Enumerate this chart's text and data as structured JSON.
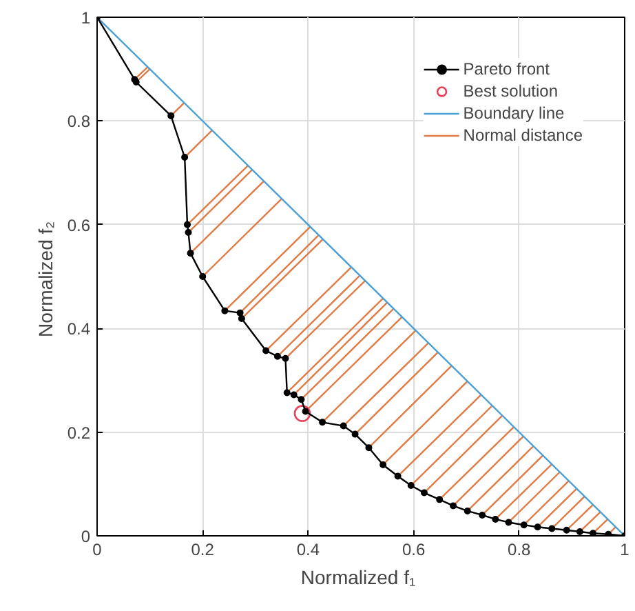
{
  "chart_data": {
    "type": "line",
    "xlabel": "Normalized  f₁",
    "ylabel": "Normalized  f₂",
    "xlim": [
      0,
      1
    ],
    "ylim": [
      0,
      1
    ],
    "xticks": [
      0,
      {
        "value": 0.2,
        "label": "0.2"
      },
      {
        "value": 0.4,
        "label": "0.4"
      },
      {
        "value": 0.6,
        "label": "0.6"
      },
      {
        "value": 0.8,
        "label": "0.8"
      },
      1
    ],
    "yticks": [
      0,
      {
        "value": 0.2,
        "label": "0.2"
      },
      {
        "value": 0.4,
        "label": "0.4"
      },
      {
        "value": 0.6,
        "label": "0.6"
      },
      {
        "value": 0.8,
        "label": "0.8"
      },
      1
    ],
    "grid": true,
    "legend": "top right",
    "series": [
      {
        "name": "Pareto front",
        "color": "#000000",
        "line_style": "solid",
        "marker": "circle",
        "x": [
          0,
          0.071,
          0.074,
          0.14,
          0.166,
          0.171,
          0.173,
          0.177,
          0.2,
          0.242,
          0.271,
          0.274,
          0.32,
          0.342,
          0.357,
          0.36,
          0.373,
          0.387,
          0.395,
          0.427,
          0.467,
          0.489,
          0.515,
          0.542,
          0.57,
          0.595,
          0.62,
          0.649,
          0.675,
          0.702,
          0.73,
          0.755,
          0.78,
          0.809,
          0.835,
          0.862,
          0.89,
          0.915,
          0.94,
          0.969,
          1
        ],
        "values": [
          1,
          0.88,
          0.875,
          0.81,
          0.73,
          0.6,
          0.585,
          0.545,
          0.5,
          0.434,
          0.43,
          0.419,
          0.357,
          0.346,
          0.342,
          0.276,
          0.272,
          0.263,
          0.24,
          0.219,
          0.212,
          0.196,
          0.17,
          0.137,
          0.115,
          0.097,
          0.083,
          0.07,
          0.058,
          0.048,
          0.04,
          0.032,
          0.026,
          0.021,
          0.017,
          0.014,
          0.011,
          0.008,
          0.005,
          0.003,
          0
        ]
      },
      {
        "name": "Best solution",
        "type": "scatter",
        "color": "#e8415a",
        "marker": "circle",
        "x": [
          0.389
        ],
        "values": [
          0.236
        ]
      },
      {
        "name": "Boundary line",
        "color": "#4a9fd4",
        "line_style": "solid",
        "marker": "none",
        "x": [
          0,
          1
        ],
        "values": [
          1,
          0
        ]
      },
      {
        "name": "Normal distance",
        "color": "#e07b45",
        "line_style": "solid",
        "marker": "none",
        "x": [
          0.071,
          0.096,
          null,
          0.074,
          0.1,
          null,
          0.14,
          0.165,
          null,
          0.166,
          0.218,
          null,
          0.171,
          0.286,
          null,
          0.173,
          0.294,
          null,
          0.177,
          0.316,
          null,
          0.2,
          0.35,
          null,
          0.242,
          0.404,
          null,
          0.271,
          0.42,
          null,
          0.274,
          0.428,
          null,
          0.32,
          0.482,
          null,
          0.342,
          0.498,
          null,
          0.357,
          0.508,
          null,
          0.36,
          0.542,
          null,
          0.373,
          0.55,
          null,
          0.387,
          0.562,
          null,
          0.395,
          0.578,
          null,
          0.427,
          0.604,
          null,
          0.467,
          0.628,
          null,
          0.489,
          0.646,
          null,
          0.515,
          0.672,
          null,
          0.542,
          0.702,
          null,
          0.57,
          0.728,
          null,
          0.595,
          0.749,
          null,
          0.62,
          0.768,
          null,
          0.649,
          0.79,
          null,
          0.675,
          0.808,
          null,
          0.702,
          0.827,
          null,
          0.73,
          0.845,
          null,
          0.755,
          0.862,
          null,
          0.78,
          0.877,
          null,
          0.809,
          0.894,
          null,
          0.835,
          0.909,
          null,
          0.862,
          0.924,
          null,
          0.89,
          0.94,
          null,
          0.915,
          0.954,
          null,
          0.94,
          0.968,
          null,
          0.969,
          0.983
        ],
        "values": [
          0.88,
          0.904,
          null,
          0.875,
          0.9,
          null,
          0.81,
          0.835,
          null,
          0.73,
          0.782,
          null,
          0.6,
          0.714,
          null,
          0.585,
          0.706,
          null,
          0.545,
          0.684,
          null,
          0.5,
          0.65,
          null,
          0.434,
          0.596,
          null,
          0.43,
          0.58,
          null,
          0.419,
          0.572,
          null,
          0.357,
          0.518,
          null,
          0.346,
          0.502,
          null,
          0.342,
          0.492,
          null,
          0.276,
          0.458,
          null,
          0.272,
          0.45,
          null,
          0.263,
          0.438,
          null,
          0.24,
          0.422,
          null,
          0.219,
          0.396,
          null,
          0.212,
          0.372,
          null,
          0.196,
          0.354,
          null,
          0.17,
          0.328,
          null,
          0.137,
          0.298,
          null,
          0.115,
          0.272,
          null,
          0.097,
          0.251,
          null,
          0.083,
          0.232,
          null,
          0.07,
          0.21,
          null,
          0.058,
          0.192,
          null,
          0.048,
          0.173,
          null,
          0.04,
          0.155,
          null,
          0.032,
          0.138,
          null,
          0.026,
          0.123,
          null,
          0.021,
          0.106,
          null,
          0.017,
          0.091,
          null,
          0.014,
          0.076,
          null,
          0.011,
          0.06,
          null,
          0.008,
          0.046,
          null,
          0.005,
          0.032,
          null,
          0.003,
          0.017
        ]
      }
    ]
  }
}
